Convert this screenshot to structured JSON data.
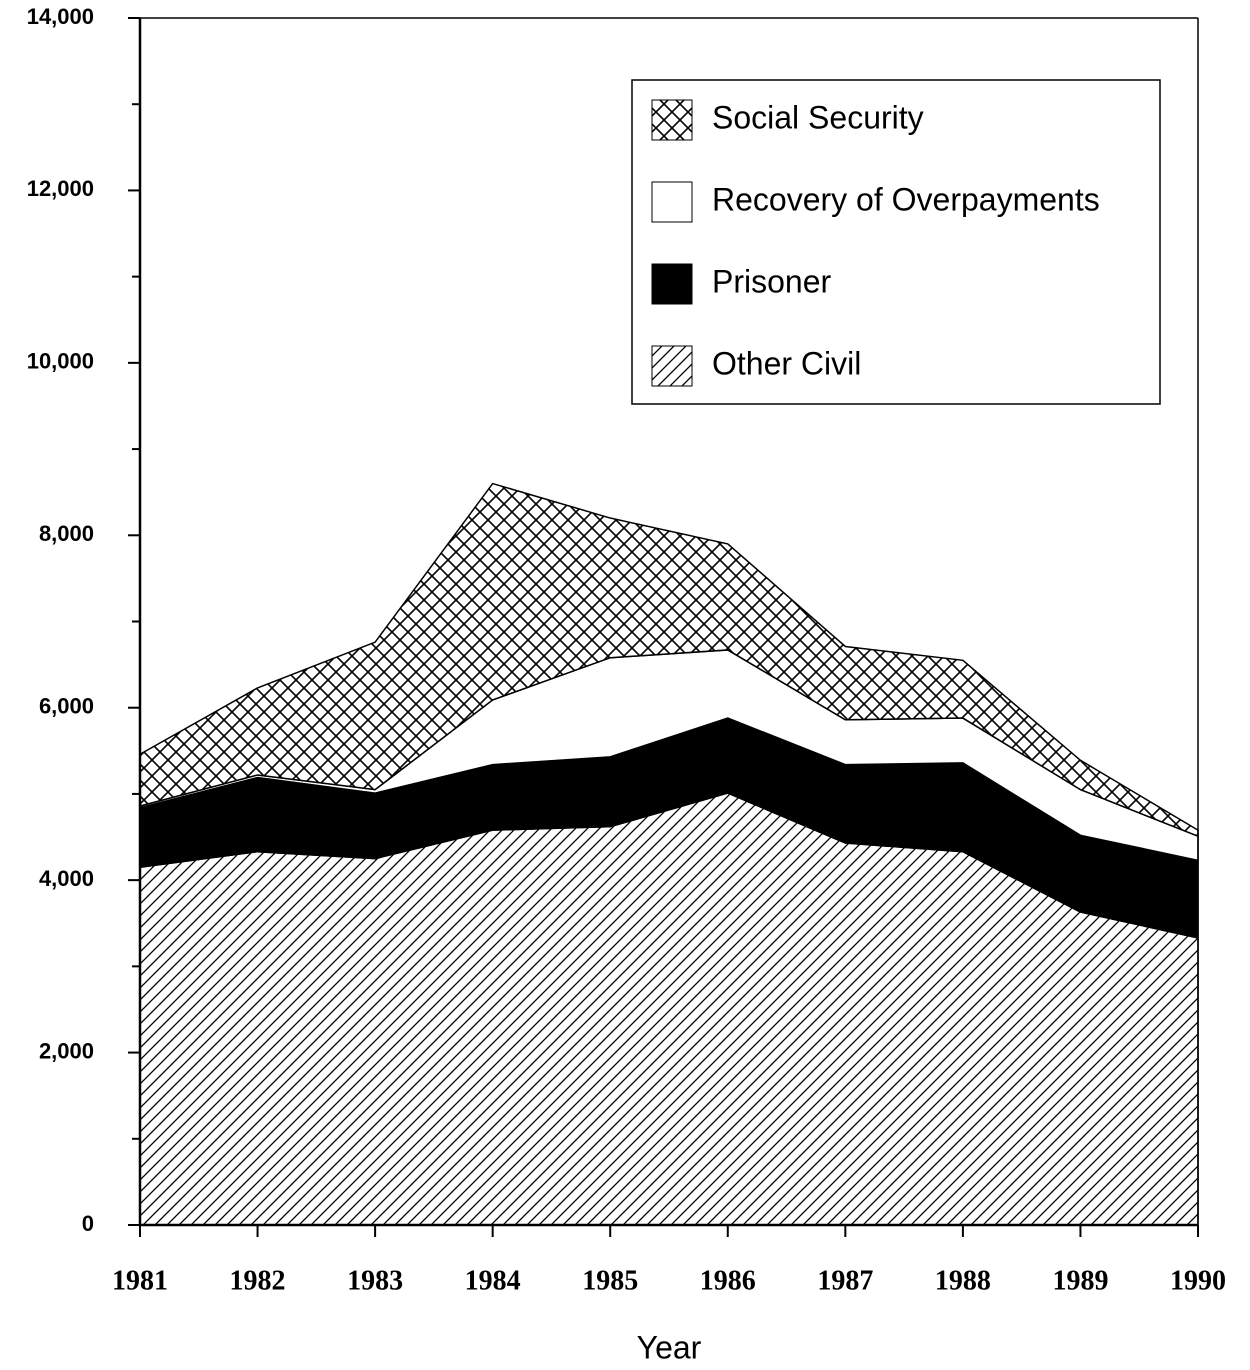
{
  "chart_data": {
    "type": "stacked_area",
    "x": [
      1981,
      1982,
      1983,
      1984,
      1985,
      1986,
      1987,
      1988,
      1989,
      1990
    ],
    "xlim": [
      1981,
      1990
    ],
    "x_label": "Year",
    "ylim": [
      0,
      14000
    ],
    "yticks": [
      0,
      {
        "value": 2000,
        "label": "2,000"
      },
      {
        "value": 4000,
        "label": "4,000"
      },
      {
        "value": 6000,
        "label": "6,000"
      },
      {
        "value": 8000,
        "label": "8,000"
      },
      {
        "value": 10000,
        "label": "10,000"
      },
      {
        "value": 12000,
        "label": "12,000"
      },
      {
        "value": 14000,
        "label": "14,000"
      }
    ],
    "minor_yticks": [
      1000,
      3000,
      5000,
      7000,
      9000,
      11000,
      13000
    ],
    "legend": "top right",
    "series": [
      {
        "name": "Other Civil",
        "pattern": "diagonal",
        "color": "#000000",
        "values": [
          4150,
          4330,
          4250,
          4580,
          4620,
          5010,
          4430,
          4330,
          3630,
          3330
        ]
      },
      {
        "name": "Prisoner",
        "pattern": "solid",
        "color": "#000000",
        "values": [
          690,
          860,
          760,
          760,
          810,
          870,
          910,
          1030,
          890,
          900
        ]
      },
      {
        "name": "Recovery of Overpayments",
        "pattern": "none",
        "color": "#000000",
        "values": [
          20,
          30,
          40,
          750,
          1150,
          790,
          520,
          520,
          530,
          280
        ]
      },
      {
        "name": "Social Security",
        "pattern": "crosshatch",
        "color": "#000000",
        "values": [
          600,
          1010,
          1710,
          2510,
          1620,
          1230,
          850,
          670,
          340,
          70
        ]
      }
    ]
  }
}
